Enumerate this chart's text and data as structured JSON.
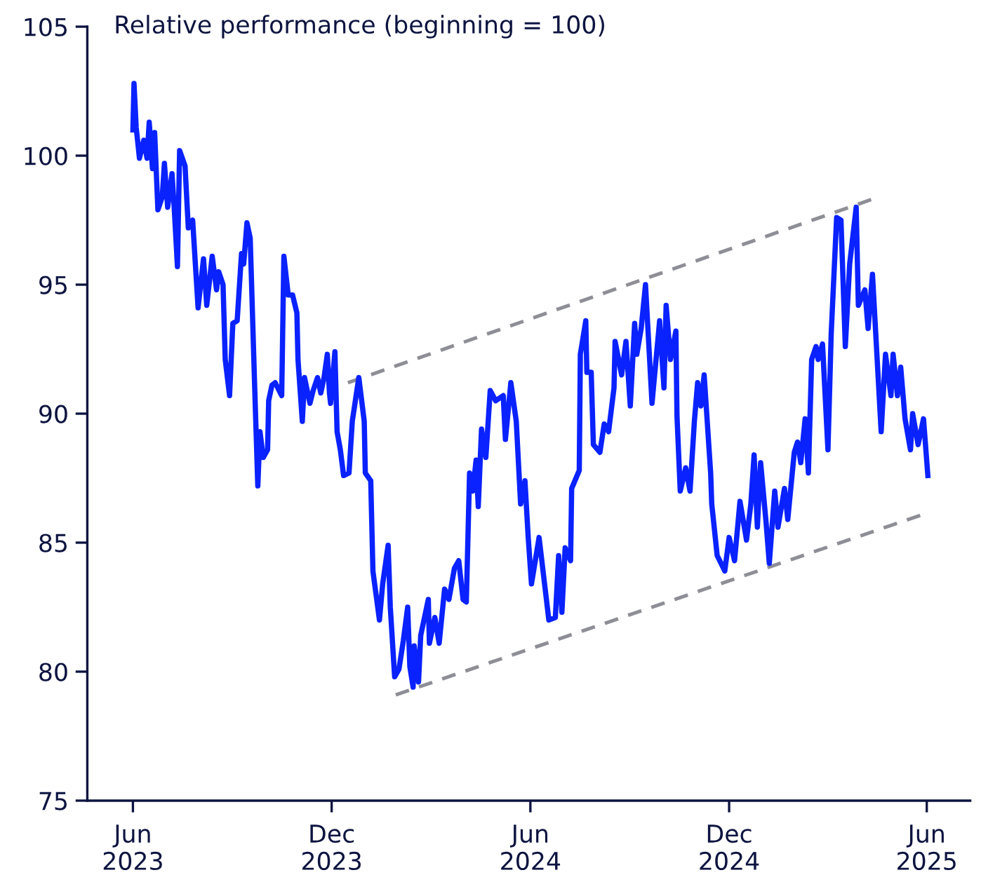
{
  "chart_data": {
    "type": "line",
    "ylabel": "Relative performance (beginning = 100)",
    "xlim": [
      "2023-04-20",
      "2025-07-11"
    ],
    "ylim": [
      75,
      105
    ],
    "yticks": [
      75,
      80,
      85,
      90,
      95,
      100,
      105
    ],
    "xticks": [
      {
        "value": "2023-06-01",
        "label": "Jun\n2023"
      },
      {
        "value": "2023-12-01",
        "label": "Dec\n2023"
      },
      {
        "value": "2024-06-01",
        "label": "Jun\n2024"
      },
      {
        "value": "2024-12-01",
        "label": "Dec\n2024"
      },
      {
        "value": "2025-06-01",
        "label": "Jun\n2025"
      }
    ],
    "grid": false,
    "legend": false,
    "series": [
      {
        "color": "#0a22ff",
        "line_style": "solid",
        "x": [
          "2023-06-01",
          "2023-06-02",
          "2023-06-04",
          "2023-06-07",
          "2023-06-11",
          "2023-06-14",
          "2023-06-16",
          "2023-06-19",
          "2023-06-21",
          "2023-06-24",
          "2023-06-28",
          "2023-06-30",
          "2023-07-03",
          "2023-07-07",
          "2023-07-09",
          "2023-07-12",
          "2023-07-14",
          "2023-07-19",
          "2023-07-22",
          "2023-07-26",
          "2023-07-31",
          "2023-08-05",
          "2023-08-08",
          "2023-08-13",
          "2023-08-17",
          "2023-08-19",
          "2023-08-23",
          "2023-08-25",
          "2023-08-29",
          "2023-09-01",
          "2023-09-05",
          "2023-09-09",
          "2023-09-11",
          "2023-09-14",
          "2023-09-17",
          "2023-09-21",
          "2023-09-24",
          "2023-09-26",
          "2023-09-29",
          "2023-10-03",
          "2023-10-04",
          "2023-10-07",
          "2023-10-10",
          "2023-10-16",
          "2023-10-18",
          "2023-10-22",
          "2023-10-26",
          "2023-10-30",
          "2023-10-31",
          "2023-11-04",
          "2023-11-06",
          "2023-11-11",
          "2023-11-14",
          "2023-11-18",
          "2023-11-21",
          "2023-11-24",
          "2023-11-27",
          "2023-11-29",
          "2023-11-30",
          "2023-12-04",
          "2023-12-06",
          "2023-12-09",
          "2023-12-12",
          "2023-12-17",
          "2023-12-20",
          "2023-12-26",
          "2023-12-31",
          "2024-01-01",
          "2024-01-06",
          "2024-01-08",
          "2024-01-14",
          "2024-01-17",
          "2024-01-22",
          "2024-01-24",
          "2024-01-28",
          "2024-02-01",
          "2024-02-05",
          "2024-02-09",
          "2024-02-11",
          "2024-02-14",
          "2024-02-15",
          "2024-02-19",
          "2024-02-21",
          "2024-02-28",
          "2024-02-29",
          "2024-03-05",
          "2024-03-09",
          "2024-03-14",
          "2024-03-18",
          "2024-03-23",
          "2024-03-27",
          "2024-03-31",
          "2024-04-03",
          "2024-04-06",
          "2024-04-09",
          "2024-04-12",
          "2024-04-14",
          "2024-04-17",
          "2024-04-21",
          "2024-04-25",
          "2024-04-30",
          "2024-05-07",
          "2024-05-09",
          "2024-05-14",
          "2024-05-19",
          "2024-05-23",
          "2024-05-27",
          "2024-05-30",
          "2024-06-02",
          "2024-06-09",
          "2024-06-18",
          "2024-06-24",
          "2024-06-27",
          "2024-06-30",
          "2024-07-03",
          "2024-07-08",
          "2024-07-09",
          "2024-07-16",
          "2024-07-17",
          "2024-07-22",
          "2024-07-23",
          "2024-07-27",
          "2024-07-29",
          "2024-08-04",
          "2024-08-08",
          "2024-08-12",
          "2024-08-17",
          "2024-08-18",
          "2024-08-24",
          "2024-08-28",
          "2024-09-01",
          "2024-09-05",
          "2024-09-07",
          "2024-09-11",
          "2024-09-15",
          "2024-09-21",
          "2024-09-28",
          "2024-10-02",
          "2024-10-04",
          "2024-10-08",
          "2024-10-13",
          "2024-10-14",
          "2024-10-17",
          "2024-10-22",
          "2024-10-26",
          "2024-10-30",
          "2024-11-02",
          "2024-11-05",
          "2024-11-08",
          "2024-11-14",
          "2024-11-15",
          "2024-11-20",
          "2024-11-27",
          "2024-12-01",
          "2024-12-06",
          "2024-12-11",
          "2024-12-17",
          "2024-12-21",
          "2024-12-24",
          "2024-12-27",
          "2024-12-30",
          "2025-01-04",
          "2025-01-07",
          "2025-01-12",
          "2025-01-15",
          "2025-01-21",
          "2025-01-24",
          "2025-01-30",
          "2025-02-02",
          "2025-02-05",
          "2025-02-09",
          "2025-02-12",
          "2025-02-15",
          "2025-02-19",
          "2025-02-21",
          "2025-02-25",
          "2025-03-02",
          "2025-03-05",
          "2025-03-10",
          "2025-03-14",
          "2025-03-18",
          "2025-03-22",
          "2025-03-28",
          "2025-03-30",
          "2025-04-05",
          "2025-04-08",
          "2025-04-12",
          "2025-04-20",
          "2025-04-24",
          "2025-04-29",
          "2025-05-01",
          "2025-05-05",
          "2025-05-08",
          "2025-05-12",
          "2025-05-17",
          "2025-05-19",
          "2025-05-24",
          "2025-05-29",
          "2025-06-02"
        ],
        "values": [
          101.0,
          102.8,
          101.1,
          99.9,
          100.6,
          99.9,
          101.3,
          99.5,
          100.9,
          97.9,
          98.4,
          99.7,
          98.0,
          99.3,
          98.0,
          95.7,
          100.2,
          99.6,
          97.2,
          97.5,
          94.1,
          96.0,
          94.2,
          96.1,
          94.8,
          95.5,
          95.0,
          92.1,
          90.7,
          93.5,
          93.6,
          96.2,
          95.8,
          97.4,
          96.8,
          91.2,
          87.2,
          89.3,
          88.3,
          88.6,
          90.5,
          91.1,
          91.2,
          90.7,
          96.1,
          94.6,
          94.6,
          93.9,
          92.1,
          89.7,
          91.4,
          90.4,
          90.9,
          91.4,
          90.8,
          91.4,
          92.3,
          90.8,
          90.4,
          92.4,
          89.3,
          88.6,
          87.6,
          87.7,
          89.7,
          91.4,
          89.7,
          87.7,
          87.4,
          83.9,
          82.0,
          83.4,
          84.9,
          82.5,
          79.8,
          80.1,
          81.2,
          82.5,
          80.2,
          79.4,
          81.0,
          79.6,
          81.4,
          82.8,
          81.1,
          82.1,
          81.1,
          83.2,
          82.8,
          84.0,
          84.3,
          82.8,
          82.7,
          87.7,
          87.0,
          88.2,
          86.4,
          89.4,
          88.3,
          90.9,
          90.5,
          90.7,
          89.0,
          91.2,
          89.7,
          86.5,
          87.4,
          85.2,
          83.4,
          85.2,
          82.0,
          82.1,
          84.5,
          82.3,
          84.8,
          84.3,
          87.1,
          87.8,
          92.3,
          93.6,
          91.6,
          91.6,
          88.8,
          88.5,
          89.6,
          89.3,
          91.0,
          92.8,
          91.5,
          92.8,
          90.3,
          93.5,
          92.3,
          93.3,
          95.0,
          90.4,
          93.6,
          91.0,
          94.2,
          92.1,
          93.2,
          89.9,
          87.0,
          87.9,
          87.0,
          89.7,
          91.2,
          90.3,
          91.5,
          87.7,
          86.5,
          84.5,
          83.9,
          85.2,
          84.3,
          86.6,
          85.1,
          86.5,
          88.4,
          85.6,
          88.1,
          85.8,
          84.2,
          87.0,
          85.6,
          87.1,
          85.9,
          88.5,
          88.9,
          88.1,
          89.8,
          87.7,
          92.1,
          92.6,
          92.1,
          92.7,
          88.6,
          93.1,
          97.6,
          97.5,
          92.6,
          95.8,
          98.0,
          94.2,
          94.8,
          93.3,
          95.4,
          89.3,
          92.3,
          90.7,
          92.3,
          90.7,
          91.8,
          89.8,
          88.6,
          90.0,
          88.8,
          89.8,
          87.6
        ]
      },
      {
        "color": "#8e8e96",
        "line_style": "dashed",
        "x": [
          "2023-12-16",
          "2025-04-11"
        ],
        "values": [
          91.2,
          98.3
        ]
      },
      {
        "color": "#8e8e96",
        "line_style": "dashed",
        "x": [
          "2024-01-29",
          "2025-05-29"
        ],
        "values": [
          79.1,
          86.1
        ]
      }
    ]
  }
}
